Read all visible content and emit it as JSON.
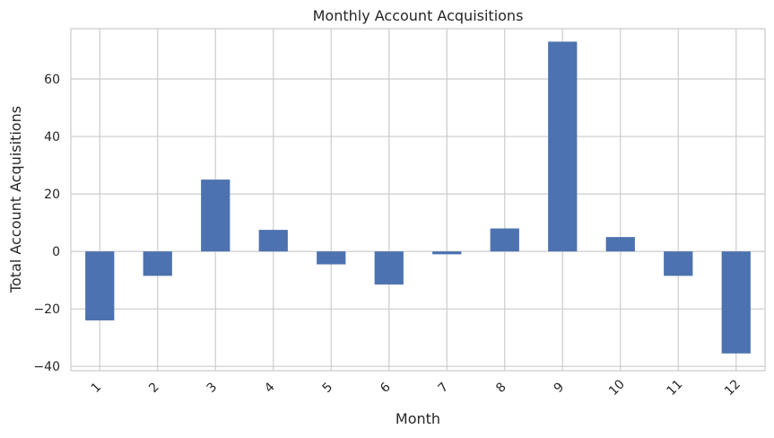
{
  "chart_data": {
    "type": "bar",
    "title": "Monthly Account Acquisitions",
    "xlabel": "Month",
    "ylabel": "Total Account Acquisitions",
    "categories": [
      "1",
      "2",
      "3",
      "4",
      "5",
      "6",
      "7",
      "8",
      "9",
      "10",
      "11",
      "12"
    ],
    "values": [
      -24,
      -8.5,
      25,
      7.5,
      -4.5,
      -11.5,
      -1,
      8,
      73,
      5,
      -8.5,
      -35.5
    ],
    "ylim": [
      -41.5,
      77.5
    ],
    "yticks": [
      -40,
      -20,
      0,
      20,
      40,
      60
    ],
    "ytick_labels": [
      "−40",
      "−20",
      "0",
      "20",
      "40",
      "60"
    ],
    "grid": true,
    "bar_color": "#4c72b0",
    "grid_color": "#cccccc"
  }
}
